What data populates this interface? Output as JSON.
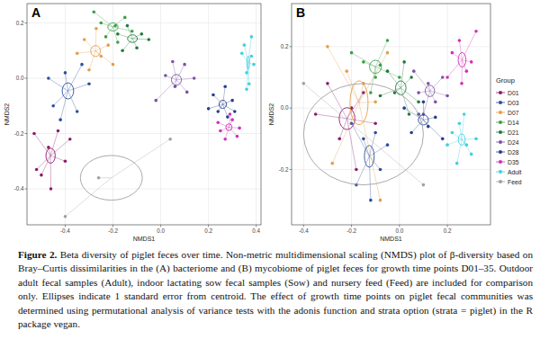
{
  "caption": {
    "label": "Figure 2.",
    "text": "Beta diversity of piglet feces over time. Non-metric multidimensional scaling (NMDS) plot of β-diversity based on Bray–Curtis dissimilarities in the (A) bacteriome and (B) mycobiome of piglet feces for growth time points D01–35. Outdoor adult fecal samples (Adult), indoor lactating sow fecal samples (Sow) and nursery feed (Feed) are included for comparison only. Ellipses indicate 1 standard error from centroid. The effect of growth time points on piglet fecal communities was determined using permutational analysis of variance tests with the adonis function and strata option (strata = piglet) in the R package vegan."
  },
  "chart_data": [
    {
      "type": "scatter",
      "title": "A",
      "x_label": "NMDS1",
      "y_label": "NMDS2",
      "grid": true,
      "xlim": [
        -0.56,
        0.42
      ],
      "ylim": [
        -0.53,
        0.27
      ],
      "xticks": [
        -0.4,
        -0.2,
        {
          "value": 0,
          "label": "0.0"
        },
        0.2,
        0.4
      ],
      "yticks": [
        -0.4,
        -0.2,
        {
          "value": 0,
          "label": "0.0"
        },
        0.2
      ],
      "series": [
        {
          "name": "D01",
          "color": "#8e1b6e",
          "x": [
            -0.53,
            -0.5,
            -0.46,
            -0.4,
            -0.38,
            -0.47,
            -0.52,
            -0.43
          ],
          "values": [
            -0.2,
            -0.35,
            -0.4,
            -0.3,
            -0.22,
            -0.25,
            -0.33,
            -0.19
          ]
        },
        {
          "name": "D03",
          "color": "#2c4f9e",
          "x": [
            -0.45,
            -0.4,
            -0.35,
            -0.3,
            -0.42,
            -0.33,
            -0.47
          ],
          "values": [
            -0.1,
            0.02,
            -0.12,
            -0.02,
            -0.15,
            0.05,
            0.0
          ]
        },
        {
          "name": "D07",
          "color": "#e69c48",
          "x": [
            -0.32,
            -0.25,
            -0.3,
            -0.22,
            -0.35,
            -0.27,
            -0.2
          ],
          "values": [
            0.14,
            0.08,
            0.03,
            0.12,
            0.09,
            0.18,
            0.05
          ]
        },
        {
          "name": "D14",
          "color": "#3aa04a",
          "x": [
            -0.25,
            -0.15,
            -0.18,
            -0.23,
            -0.12,
            -0.28,
            -0.19
          ],
          "values": [
            0.2,
            0.22,
            0.13,
            0.15,
            0.17,
            0.24,
            0.19
          ]
        },
        {
          "name": "D21",
          "color": "#1f7a3c",
          "x": [
            -0.16,
            -0.08,
            -0.14,
            -0.1,
            -0.05,
            -0.18
          ],
          "values": [
            0.1,
            0.16,
            0.19,
            0.11,
            0.14,
            0.16
          ]
        },
        {
          "name": "D24",
          "color": "#7b52a6",
          "x": [
            0.02,
            0.1,
            0.06,
            0.14,
            0.05,
            0.11,
            -0.02
          ],
          "values": [
            0.01,
            0.05,
            -0.03,
            0.0,
            0.06,
            -0.05,
            -0.08
          ]
        },
        {
          "name": "D28",
          "color": "#24408e",
          "x": [
            0.22,
            0.28,
            0.24,
            0.3,
            0.27,
            0.2,
            0.31
          ],
          "values": [
            -0.06,
            -0.14,
            -0.12,
            -0.08,
            -0.03,
            -0.11,
            -0.12
          ]
        },
        {
          "name": "D35",
          "color": "#d22fb8",
          "x": [
            0.25,
            0.3,
            0.27,
            0.33,
            0.29,
            0.24,
            0.32
          ],
          "values": [
            -0.19,
            -0.15,
            -0.22,
            -0.18,
            -0.13,
            -0.16,
            -0.21
          ]
        },
        {
          "name": "Adult",
          "color": "#3fd0e0",
          "x": [
            0.35,
            0.38,
            0.36,
            0.39,
            0.37,
            0.34,
            0.38,
            0.36
          ],
          "values": [
            0.12,
            0.08,
            0.02,
            0.05,
            -0.02,
            0.09,
            0.15,
            -0.04
          ]
        },
        {
          "name": "Feed",
          "color": "#a0a0a0",
          "x": [
            -0.4,
            0.04,
            -0.26
          ],
          "values": [
            -0.5,
            -0.22,
            -0.36
          ]
        }
      ]
    },
    {
      "type": "scatter",
      "title": "B",
      "x_label": "NMDS1",
      "y_label": "NMDS2",
      "grid": true,
      "legend": "right",
      "legend_title": "Group",
      "xlim": [
        -0.45,
        0.38
      ],
      "ylim": [
        -0.38,
        0.34
      ],
      "xticks": [
        -0.4,
        -0.2,
        {
          "value": 0,
          "label": "0.0"
        },
        0.2
      ],
      "yticks": [
        -0.2,
        {
          "value": 0,
          "label": "0.0"
        },
        0.2
      ],
      "series": [
        {
          "name": "D01",
          "color": "#8e1b6e",
          "x": [
            -0.2,
            -0.3,
            -0.1,
            -0.25,
            -0.15,
            -0.35,
            -0.18
          ],
          "values": [
            0.0,
            0.08,
            -0.05,
            -0.1,
            0.05,
            -0.02,
            -0.2
          ]
        },
        {
          "name": "D03",
          "color": "#2c4f9e",
          "x": [
            -0.15,
            -0.08,
            -0.18,
            -0.05,
            -0.12,
            -0.2,
            -0.1
          ],
          "values": [
            -0.1,
            -0.2,
            -0.25,
            -0.12,
            -0.3,
            -0.05,
            -0.08
          ]
        },
        {
          "name": "D07",
          "color": "#e69c48",
          "x": [
            -0.22,
            -0.1,
            -0.28,
            -0.05,
            -0.15,
            -0.3,
            -0.08
          ],
          "values": [
            0.12,
            0.02,
            -0.18,
            0.18,
            0.08,
            0.2,
            -0.3
          ]
        },
        {
          "name": "D14",
          "color": "#3aa04a",
          "x": [
            -0.15,
            -0.1,
            -0.05,
            -0.2,
            -0.12,
            -0.08,
            0.0
          ],
          "values": [
            0.15,
            0.1,
            0.22,
            0.18,
            0.05,
            0.14,
            0.1
          ]
        },
        {
          "name": "D21",
          "color": "#1f7a3c",
          "x": [
            -0.02,
            0.05,
            -0.05,
            0.08,
            0.02,
            -0.08,
            0.04
          ],
          "values": [
            0.05,
            0.1,
            0.12,
            0.02,
            0.15,
            0.04,
            -0.02
          ]
        },
        {
          "name": "D24",
          "color": "#7b52a6",
          "x": [
            0.08,
            0.15,
            0.12,
            0.18,
            0.1,
            0.2,
            0.06
          ],
          "values": [
            0.05,
            0.02,
            0.08,
            0.1,
            -0.02,
            0.04,
            0.12
          ]
        },
        {
          "name": "D28",
          "color": "#24408e",
          "x": [
            0.08,
            0.12,
            0.05,
            0.15,
            0.18,
            0.02,
            0.1
          ],
          "values": [
            -0.02,
            -0.06,
            -0.08,
            -0.03,
            -0.1,
            0.0,
            0.02
          ]
        },
        {
          "name": "D35",
          "color": "#d22fb8",
          "x": [
            0.22,
            0.28,
            0.25,
            0.3,
            0.2,
            0.32,
            0.26
          ],
          "values": [
            0.18,
            0.12,
            0.22,
            0.15,
            0.1,
            0.25,
            0.08
          ]
        },
        {
          "name": "Adult",
          "color": "#3fd0e0",
          "x": [
            0.22,
            0.28,
            0.25,
            0.3,
            0.24,
            0.32,
            0.2,
            0.27
          ],
          "values": [
            -0.08,
            -0.12,
            -0.05,
            -0.15,
            -0.18,
            -0.1,
            -0.12,
            -0.02
          ]
        },
        {
          "name": "Feed",
          "color": "#a0a0a0",
          "x": [
            -0.4,
            0.1
          ],
          "values": [
            0.08,
            -0.25
          ]
        }
      ]
    }
  ]
}
